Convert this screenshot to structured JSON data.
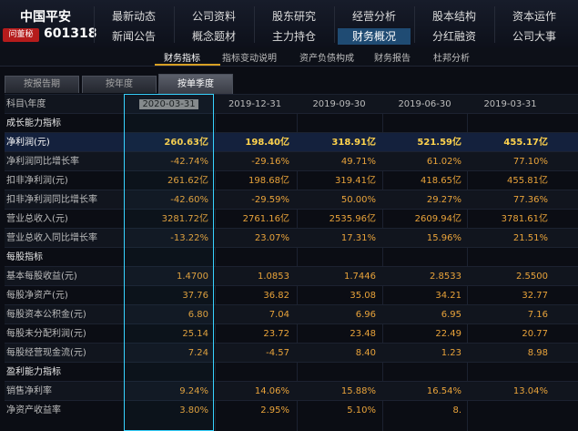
{
  "header": {
    "stock_name": "中国平安",
    "ask_badge": "问董秘",
    "stock_code": "601318",
    "nav_row1": [
      "最新动态",
      "公司资料",
      "股东研究",
      "经营分析",
      "股本结构",
      "资本运作"
    ],
    "nav_row2": [
      "新闻公告",
      "概念题材",
      "主力持仓",
      "财务概况",
      "分红融资",
      "公司大事"
    ],
    "active_nav": "财务概况"
  },
  "subnav": {
    "items": [
      "财务指标",
      "指标变动说明",
      "资产负债构成",
      "财务报告",
      "杜邦分析"
    ],
    "active": "财务指标"
  },
  "tabs": {
    "items": [
      "按报告期",
      "按年度",
      "按单季度"
    ],
    "active": "按单季度"
  },
  "table": {
    "corner": "科目\\年度",
    "columns": [
      "2020-03-31",
      "2019-12-31",
      "2019-09-30",
      "2019-06-30",
      "2019-03-31"
    ],
    "rows": [
      {
        "label": "成长能力指标",
        "section": true,
        "values": []
      },
      {
        "label": "净利润(元)",
        "highlight": true,
        "values": [
          "260.63亿",
          "198.40亿",
          "318.91亿",
          "521.59亿",
          "455.17亿"
        ]
      },
      {
        "label": "净利润同比增长率",
        "values": [
          "-42.74%",
          "-29.16%",
          "49.71%",
          "61.02%",
          "77.10%"
        ]
      },
      {
        "label": "扣非净利润(元)",
        "values": [
          "261.62亿",
          "198.68亿",
          "319.41亿",
          "418.65亿",
          "455.81亿"
        ]
      },
      {
        "label": "扣非净利润同比增长率",
        "values": [
          "-42.60%",
          "-29.59%",
          "50.00%",
          "29.27%",
          "77.36%"
        ]
      },
      {
        "label": "营业总收入(元)",
        "values": [
          "3281.72亿",
          "2761.16亿",
          "2535.96亿",
          "2609.94亿",
          "3781.61亿"
        ]
      },
      {
        "label": "营业总收入同比增长率",
        "values": [
          "-13.22%",
          "23.07%",
          "17.31%",
          "15.96%",
          "21.51%"
        ]
      },
      {
        "label": "每股指标",
        "section": true,
        "values": []
      },
      {
        "label": "基本每股收益(元)",
        "values": [
          "1.4700",
          "1.0853",
          "1.7446",
          "2.8533",
          "2.5500"
        ]
      },
      {
        "label": "每股净资产(元)",
        "values": [
          "37.76",
          "36.82",
          "35.08",
          "34.21",
          "32.77"
        ]
      },
      {
        "label": "每股资本公积金(元)",
        "values": [
          "6.80",
          "7.04",
          "6.96",
          "6.95",
          "7.16"
        ]
      },
      {
        "label": "每股未分配利润(元)",
        "values": [
          "25.14",
          "23.72",
          "23.48",
          "22.49",
          "20.77"
        ]
      },
      {
        "label": "每股经营现金流(元)",
        "values": [
          "7.24",
          "-4.57",
          "8.40",
          "1.23",
          "8.98"
        ]
      },
      {
        "label": "盈利能力指标",
        "section": true,
        "values": []
      },
      {
        "label": "销售净利率",
        "values": [
          "9.24%",
          "14.06%",
          "15.88%",
          "16.54%",
          "13.04%"
        ]
      },
      {
        "label": "净资产收益率",
        "values": [
          "3.80%",
          "2.95%",
          "5.10%",
          "8.",
          ""
        ]
      }
    ]
  }
}
